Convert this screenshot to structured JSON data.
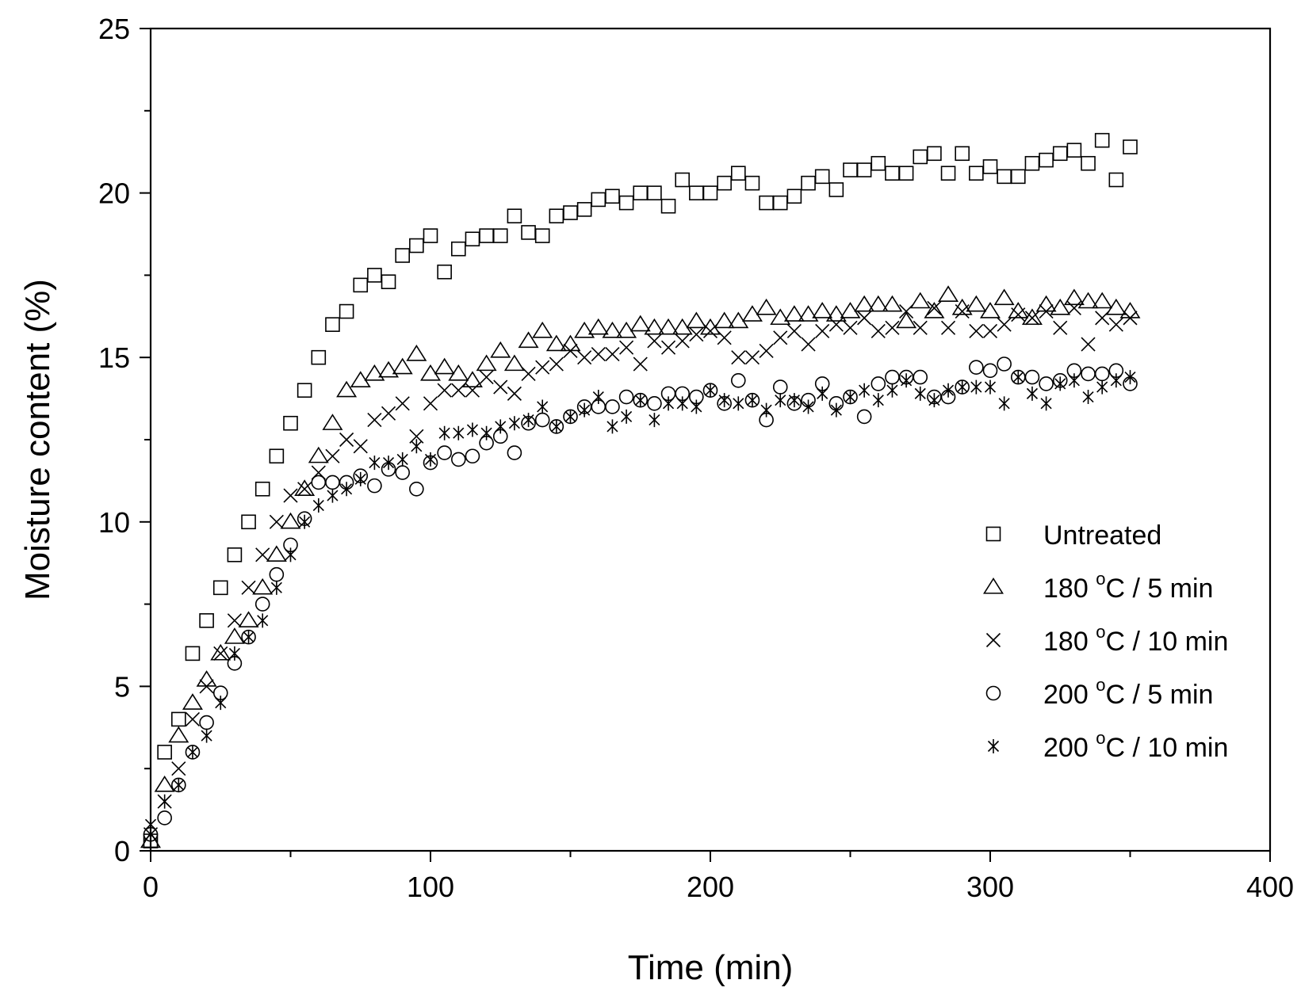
{
  "chart_data": {
    "type": "scatter",
    "title": "",
    "xlabel": "Time (min)",
    "ylabel": "Moisture content (%)",
    "xlim": [
      0,
      400
    ],
    "ylim": [
      0,
      25
    ],
    "xticks": [
      0,
      100,
      200,
      300,
      400
    ],
    "yticks": [
      0,
      5,
      10,
      15,
      20,
      25
    ],
    "grid": false,
    "legend_position": "bottom-right",
    "series": [
      {
        "name": "Untreated",
        "legend_main": "Untreated",
        "legend_sup": "",
        "legend_tail": "",
        "marker": "square",
        "x": [
          0,
          5,
          10,
          15,
          20,
          25,
          30,
          35,
          40,
          45,
          50,
          55,
          60,
          65,
          70,
          75,
          80,
          85,
          90,
          95,
          100,
          105,
          110,
          115,
          120,
          125,
          130,
          135,
          140,
          145,
          150,
          155,
          160,
          165,
          170,
          175,
          180,
          185,
          190,
          195,
          200,
          205,
          210,
          215,
          220,
          225,
          230,
          235,
          240,
          245,
          250,
          255,
          260,
          265,
          270,
          275,
          280,
          285,
          290,
          295,
          300,
          305,
          310,
          315,
          320,
          325,
          330,
          335,
          340,
          345,
          350
        ],
        "y": [
          0.3,
          3.0,
          4.0,
          6.0,
          7.0,
          8.0,
          9.0,
          10.0,
          11.0,
          12.0,
          13.0,
          14.0,
          15.0,
          16.0,
          16.4,
          17.2,
          17.5,
          17.3,
          18.1,
          18.4,
          18.7,
          17.6,
          18.3,
          18.6,
          18.7,
          18.7,
          19.3,
          18.8,
          18.7,
          19.3,
          19.4,
          19.5,
          19.8,
          19.9,
          19.7,
          20.0,
          20.0,
          19.6,
          20.4,
          20.0,
          20.0,
          20.3,
          20.6,
          20.3,
          19.7,
          19.7,
          19.9,
          20.3,
          20.5,
          20.1,
          20.7,
          20.7,
          20.9,
          20.6,
          20.6,
          21.1,
          21.2,
          20.6,
          21.2,
          20.6,
          20.8,
          20.5,
          20.5,
          20.9,
          21.0,
          21.2,
          21.3,
          20.9,
          21.6,
          20.4,
          21.4
        ]
      },
      {
        "name": "180 °C / 5 min",
        "legend_main": "180 ",
        "legend_sup": "o",
        "legend_tail": "C / 5 min",
        "marker": "triangle",
        "x": [
          0,
          5,
          10,
          15,
          20,
          25,
          30,
          35,
          40,
          45,
          50,
          55,
          60,
          65,
          70,
          75,
          80,
          85,
          90,
          95,
          100,
          105,
          110,
          115,
          120,
          125,
          130,
          135,
          140,
          145,
          150,
          155,
          160,
          165,
          170,
          175,
          180,
          185,
          190,
          195,
          200,
          205,
          210,
          215,
          220,
          225,
          230,
          235,
          240,
          245,
          250,
          255,
          260,
          265,
          270,
          275,
          280,
          285,
          290,
          295,
          300,
          305,
          310,
          315,
          320,
          325,
          330,
          335,
          340,
          345,
          350
        ],
        "y": [
          0.3,
          2.0,
          3.5,
          4.5,
          5.2,
          6.0,
          6.5,
          7.0,
          8.0,
          9.0,
          10.0,
          11.0,
          12.0,
          13.0,
          14.0,
          14.3,
          14.5,
          14.6,
          14.7,
          15.1,
          14.5,
          14.7,
          14.5,
          14.3,
          14.8,
          15.2,
          14.8,
          15.5,
          15.8,
          15.4,
          15.4,
          15.8,
          15.9,
          15.8,
          15.8,
          16.0,
          15.9,
          15.9,
          15.9,
          16.1,
          15.9,
          16.1,
          16.1,
          16.3,
          16.5,
          16.2,
          16.3,
          16.3,
          16.4,
          16.3,
          16.4,
          16.6,
          16.6,
          16.6,
          16.1,
          16.7,
          16.4,
          16.9,
          16.5,
          16.6,
          16.4,
          16.8,
          16.4,
          16.2,
          16.6,
          16.5,
          16.8,
          16.7,
          16.7,
          16.5,
          16.4
        ]
      },
      {
        "name": "180 °C / 10 min",
        "legend_main": "180 ",
        "legend_sup": "o",
        "legend_tail": "C / 10 min",
        "marker": "cross",
        "x": [
          0,
          5,
          10,
          15,
          20,
          25,
          30,
          35,
          40,
          45,
          50,
          55,
          60,
          65,
          70,
          75,
          80,
          85,
          90,
          95,
          100,
          105,
          110,
          115,
          120,
          125,
          130,
          135,
          140,
          145,
          150,
          155,
          160,
          165,
          170,
          175,
          180,
          185,
          190,
          195,
          200,
          205,
          210,
          215,
          220,
          225,
          230,
          235,
          240,
          245,
          250,
          255,
          260,
          265,
          270,
          275,
          280,
          285,
          290,
          295,
          300,
          305,
          310,
          315,
          320,
          325,
          330,
          335,
          340,
          345,
          350
        ],
        "y": [
          0.5,
          1.5,
          2.5,
          4.0,
          5.0,
          6.0,
          7.0,
          8.0,
          9.0,
          10.0,
          10.8,
          11.0,
          11.5,
          12.0,
          12.5,
          12.3,
          13.1,
          13.3,
          13.6,
          12.6,
          13.6,
          14.0,
          14.0,
          14.0,
          14.4,
          14.1,
          13.9,
          14.5,
          14.7,
          14.8,
          15.2,
          15.0,
          15.1,
          15.1,
          15.3,
          14.8,
          15.5,
          15.3,
          15.5,
          15.7,
          15.8,
          15.6,
          15.0,
          15.0,
          15.2,
          15.6,
          15.8,
          15.4,
          15.8,
          16.0,
          15.9,
          16.2,
          15.8,
          15.9,
          16.4,
          15.9,
          16.5,
          15.9,
          16.4,
          15.8,
          15.8,
          16.0,
          16.3,
          16.2,
          16.4,
          15.9,
          16.5,
          15.4,
          16.2,
          16.0,
          16.2
        ]
      },
      {
        "name": "200 °C / 5 min",
        "legend_main": "200 ",
        "legend_sup": "o",
        "legend_tail": "C / 5 min",
        "marker": "circle",
        "x": [
          0,
          5,
          10,
          15,
          20,
          25,
          30,
          35,
          40,
          45,
          50,
          55,
          60,
          65,
          70,
          75,
          80,
          85,
          90,
          95,
          100,
          105,
          110,
          115,
          120,
          125,
          130,
          135,
          140,
          145,
          150,
          155,
          160,
          165,
          170,
          175,
          180,
          185,
          190,
          195,
          200,
          205,
          210,
          215,
          220,
          225,
          230,
          235,
          240,
          245,
          250,
          255,
          260,
          265,
          270,
          275,
          280,
          285,
          290,
          295,
          300,
          305,
          310,
          315,
          320,
          325,
          330,
          335,
          340,
          345,
          350
        ],
        "y": [
          0.5,
          1.0,
          2.0,
          3.0,
          3.9,
          4.8,
          5.7,
          6.5,
          7.5,
          8.4,
          9.3,
          10.1,
          11.2,
          11.2,
          11.2,
          11.4,
          11.1,
          11.6,
          11.5,
          11.0,
          11.8,
          12.1,
          11.9,
          12.0,
          12.4,
          12.6,
          12.1,
          13.0,
          13.1,
          12.9,
          13.2,
          13.5,
          13.5,
          13.5,
          13.8,
          13.7,
          13.6,
          13.9,
          13.9,
          13.8,
          14.0,
          13.6,
          14.3,
          13.7,
          13.1,
          14.1,
          13.6,
          13.7,
          14.2,
          13.6,
          13.8,
          13.2,
          14.2,
          14.4,
          14.4,
          14.4,
          13.8,
          13.8,
          14.1,
          14.7,
          14.6,
          14.8,
          14.4,
          14.4,
          14.2,
          14.3,
          14.6,
          14.5,
          14.5,
          14.6,
          14.2
        ]
      },
      {
        "name": "200 °C / 10 min",
        "legend_main": "200 ",
        "legend_sup": "o",
        "legend_tail": "C / 10 min",
        "marker": "asterisk",
        "x": [
          0,
          5,
          10,
          15,
          20,
          25,
          30,
          35,
          40,
          45,
          50,
          55,
          60,
          65,
          70,
          75,
          80,
          85,
          90,
          95,
          100,
          105,
          110,
          115,
          120,
          125,
          130,
          135,
          140,
          145,
          150,
          155,
          160,
          165,
          170,
          175,
          180,
          185,
          190,
          195,
          200,
          205,
          210,
          215,
          220,
          225,
          230,
          235,
          240,
          245,
          250,
          255,
          260,
          265,
          270,
          275,
          280,
          285,
          290,
          295,
          300,
          305,
          310,
          315,
          320,
          325,
          330,
          335,
          340,
          345,
          350
        ],
        "y": [
          0.8,
          1.5,
          2.0,
          3.0,
          3.5,
          4.5,
          6.0,
          6.5,
          7.0,
          8.0,
          9.0,
          10.0,
          10.5,
          10.8,
          11.0,
          11.3,
          11.8,
          11.8,
          11.9,
          12.3,
          11.9,
          12.7,
          12.7,
          12.8,
          12.7,
          12.9,
          13.0,
          13.1,
          13.5,
          12.9,
          13.2,
          13.4,
          13.8,
          12.9,
          13.2,
          13.7,
          13.1,
          13.6,
          13.6,
          13.5,
          14.0,
          13.7,
          13.6,
          13.7,
          13.4,
          13.7,
          13.7,
          13.5,
          13.9,
          13.4,
          13.8,
          14.0,
          13.7,
          14.0,
          14.3,
          13.9,
          13.7,
          14.0,
          14.1,
          14.1,
          14.1,
          13.6,
          14.4,
          13.9,
          13.6,
          14.2,
          14.3,
          13.8,
          14.1,
          14.3,
          14.4
        ]
      }
    ]
  }
}
